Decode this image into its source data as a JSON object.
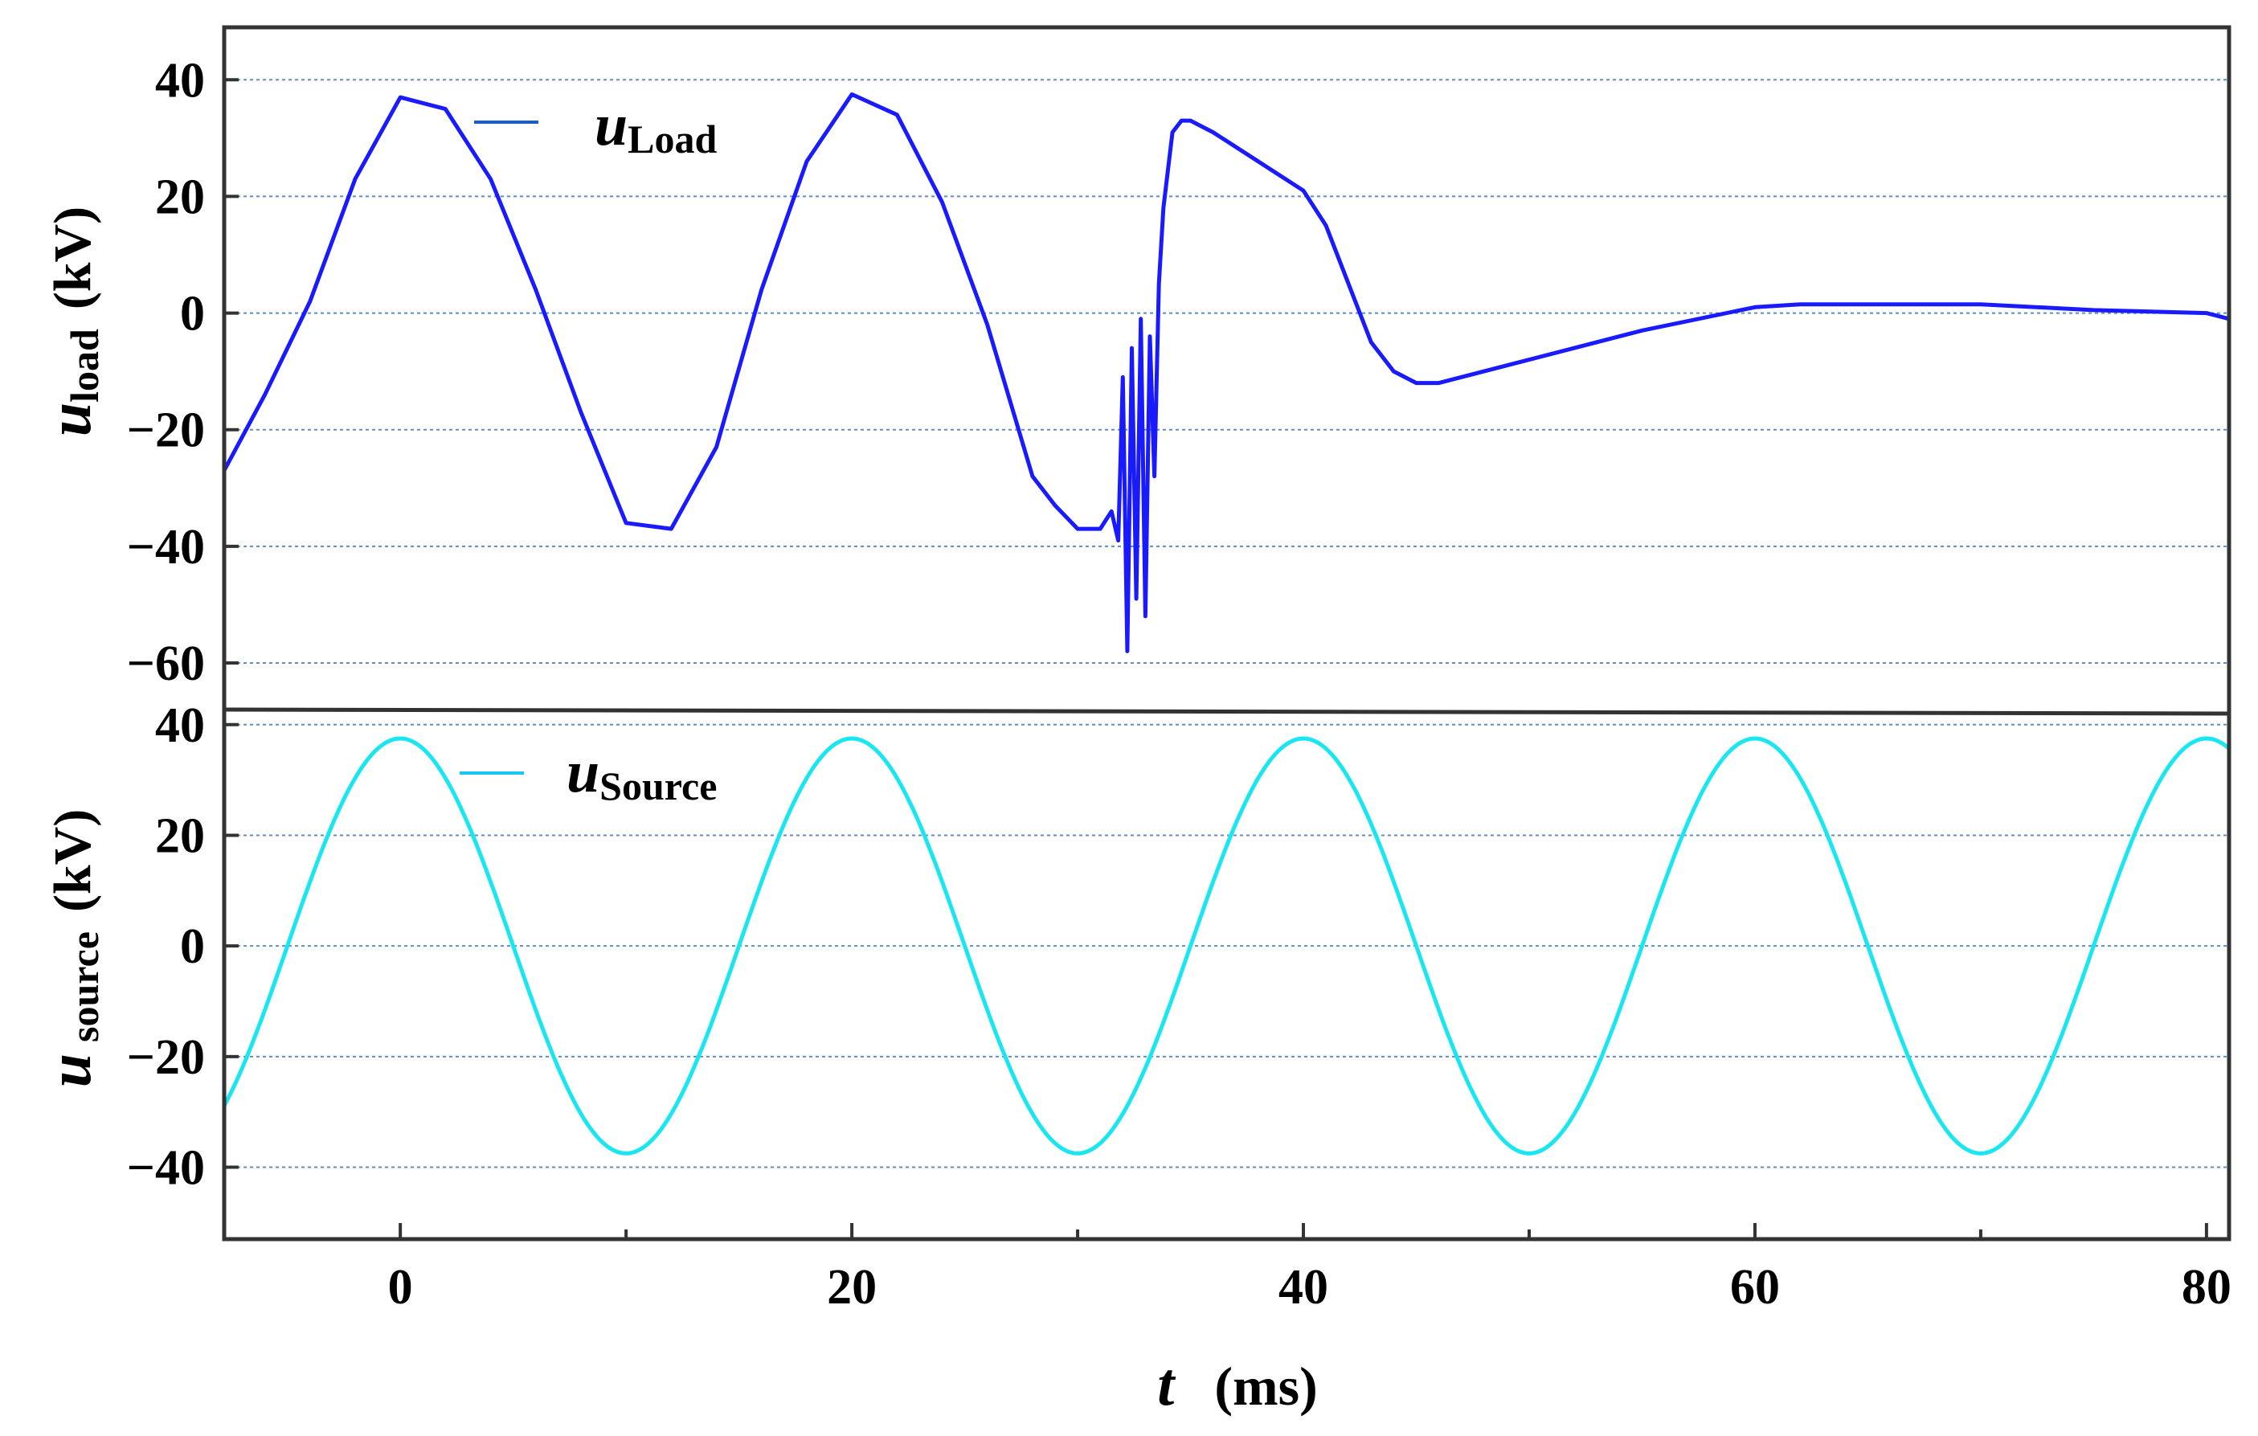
{
  "chart_data": [
    {
      "type": "line",
      "panel": "top",
      "ylabel_main": "u",
      "ylabel_sub": "load",
      "ylabel_unit": "(kV)",
      "xlim": [
        -7.8,
        81
      ],
      "ylim": [
        -68,
        49
      ],
      "yticks": [
        40,
        20,
        0,
        -20,
        -40,
        -60
      ],
      "ytick_labels": [
        "40",
        "20",
        "0",
        "−20",
        "−40",
        "−60"
      ],
      "grid": true,
      "legend_placement": "top-left",
      "series": [
        {
          "name_main": "u",
          "name_sub": "Load",
          "color": "#1a1aff",
          "x": [
            -7.8,
            -6,
            -4,
            -2,
            0,
            2,
            4,
            6,
            8,
            10,
            12,
            14,
            16,
            18,
            20,
            22,
            24,
            26,
            27,
            28,
            29,
            30,
            31,
            31.5,
            31.8,
            32.0,
            32.2,
            32.4,
            32.6,
            32.8,
            33.0,
            33.2,
            33.4,
            33.6,
            33.8,
            34.2,
            34.6,
            35.0,
            36,
            38,
            40,
            41,
            42,
            43,
            44,
            45,
            46,
            50,
            55,
            60,
            62,
            70,
            75,
            80,
            81
          ],
          "y": [
            -27,
            -14,
            2,
            23,
            37,
            35,
            23,
            4,
            -17,
            -36,
            -37,
            -23,
            4,
            26,
            37.5,
            34,
            19,
            -2,
            -15,
            -28,
            -33,
            -37,
            -37,
            -34,
            -39,
            -11,
            -58,
            -6,
            -49,
            -1,
            -52,
            -4,
            -28,
            5,
            18,
            31,
            33,
            33,
            31,
            26,
            21,
            15,
            5,
            -5,
            -10,
            -12,
            -12,
            -8,
            -3,
            1,
            1.5,
            1.5,
            0.5,
            0,
            -1
          ]
        }
      ]
    },
    {
      "type": "line",
      "panel": "bottom",
      "ylabel_main": "u",
      "ylabel_sub": "source",
      "ylabel_unit": "(kV)",
      "xlabel_main": "t",
      "xlabel_unit": "(ms)",
      "xlim": [
        -7.8,
        81
      ],
      "ylim": [
        -53,
        42
      ],
      "yticks": [
        40,
        20,
        0,
        -20,
        -40
      ],
      "ytick_labels": [
        "40",
        "20",
        "0",
        "−20",
        "−40"
      ],
      "xticks": [
        0,
        20,
        40,
        60,
        80
      ],
      "xtick_labels": [
        "0",
        "20",
        "40",
        "60",
        "80"
      ],
      "grid": true,
      "legend_placement": "top-left",
      "series": [
        {
          "name_main": "u",
          "name_sub": "Source",
          "color": "#19e6f0",
          "amplitude_kV": 37.5,
          "period_ms": 20,
          "peak_at_ms": 0
        }
      ]
    }
  ]
}
